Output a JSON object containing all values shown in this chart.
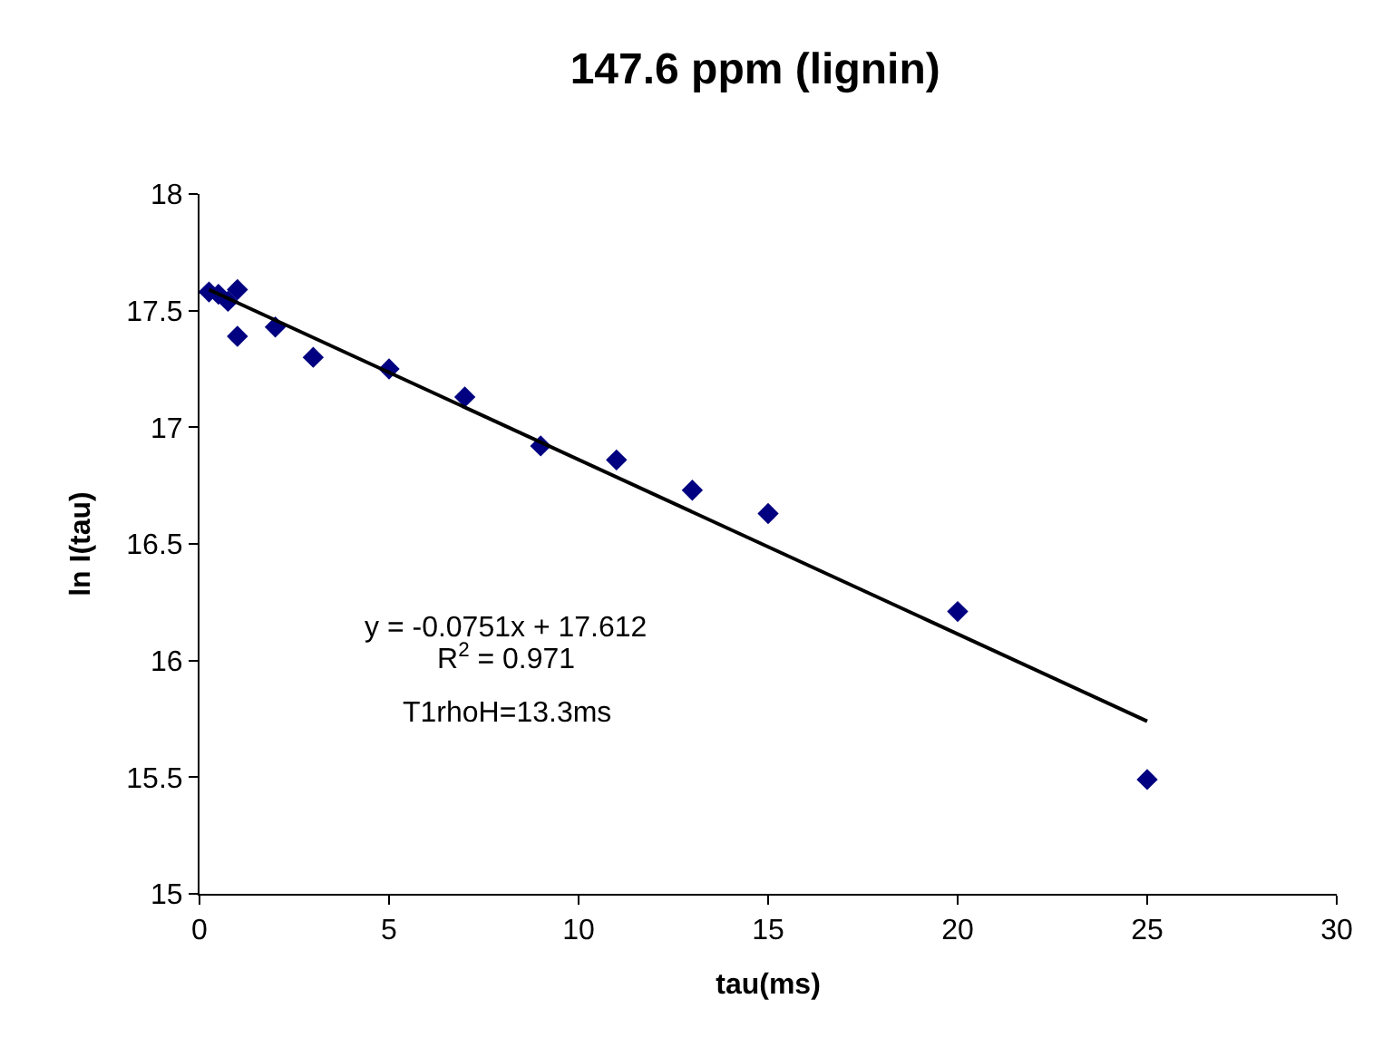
{
  "chart_data": {
    "type": "scatter",
    "title": "147.6 ppm (lignin)",
    "xlabel": "tau(ms)",
    "ylabel": "ln I(tau)",
    "x": [
      0.25,
      0.5,
      0.75,
      1,
      1,
      2,
      3,
      5,
      7,
      9,
      11,
      13,
      15,
      20,
      25
    ],
    "series": [
      {
        "color": "#000080",
        "values": [
          17.58,
          17.57,
          17.54,
          17.59,
          17.39,
          17.43,
          17.3,
          17.25,
          17.13,
          16.92,
          16.86,
          16.73,
          16.63,
          16.21,
          15.49
        ]
      },
      {
        "type": "line",
        "marker": "none",
        "color": "#000000",
        "x": [
          0.25,
          25
        ],
        "values": [
          17.59,
          15.74
        ]
      }
    ],
    "marker": "diamond",
    "xlim": [
      0,
      30
    ],
    "xticks": [
      0,
      5,
      10,
      15,
      20,
      25,
      30
    ],
    "ylim": [
      15,
      18
    ],
    "yticks": [
      15,
      15.5,
      16,
      16.5,
      17,
      17.5,
      18
    ],
    "annotations": [
      "y = -0.0751x + 17.612",
      "R$^{2}$ = 0.971",
      "T1rhoH=13.3ms"
    ]
  }
}
